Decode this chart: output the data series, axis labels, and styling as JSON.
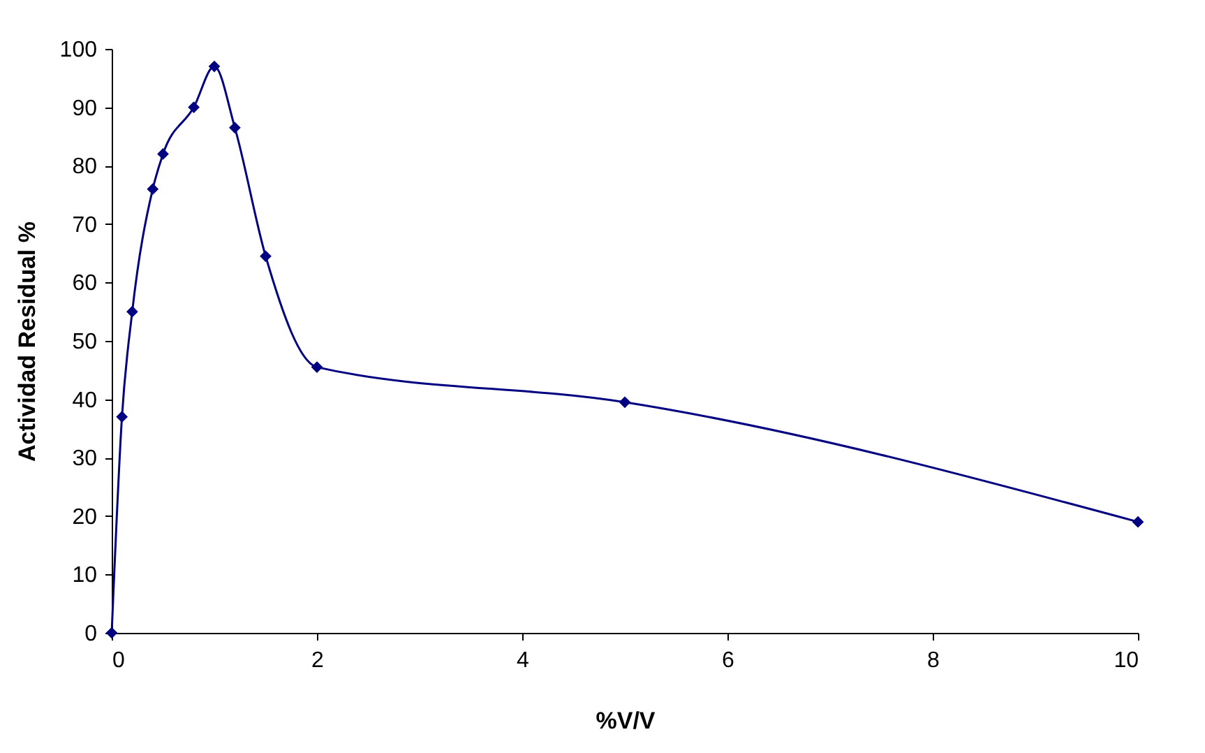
{
  "chart_data": {
    "type": "line",
    "xlabel": "%V/V",
    "ylabel": "Actividad Residual %",
    "x": [
      0,
      0.1,
      0.2,
      0.4,
      0.5,
      0.8,
      1,
      1.2,
      1.5,
      2,
      5,
      10
    ],
    "series": [
      {
        "color": "#000080",
        "values": [
          0,
          37,
          55,
          76,
          82,
          90,
          97,
          86.5,
          64.5,
          45.5,
          39.5,
          19
        ]
      }
    ],
    "xlim": [
      0,
      10
    ],
    "xticks": [
      0,
      2,
      4,
      6,
      8,
      10
    ],
    "ylim": [
      0,
      100
    ],
    "yticks": [
      0,
      10,
      20,
      30,
      40,
      50,
      60,
      70,
      80,
      90,
      100
    ],
    "grid": false,
    "marker": "diamond",
    "line_style": "solid"
  }
}
